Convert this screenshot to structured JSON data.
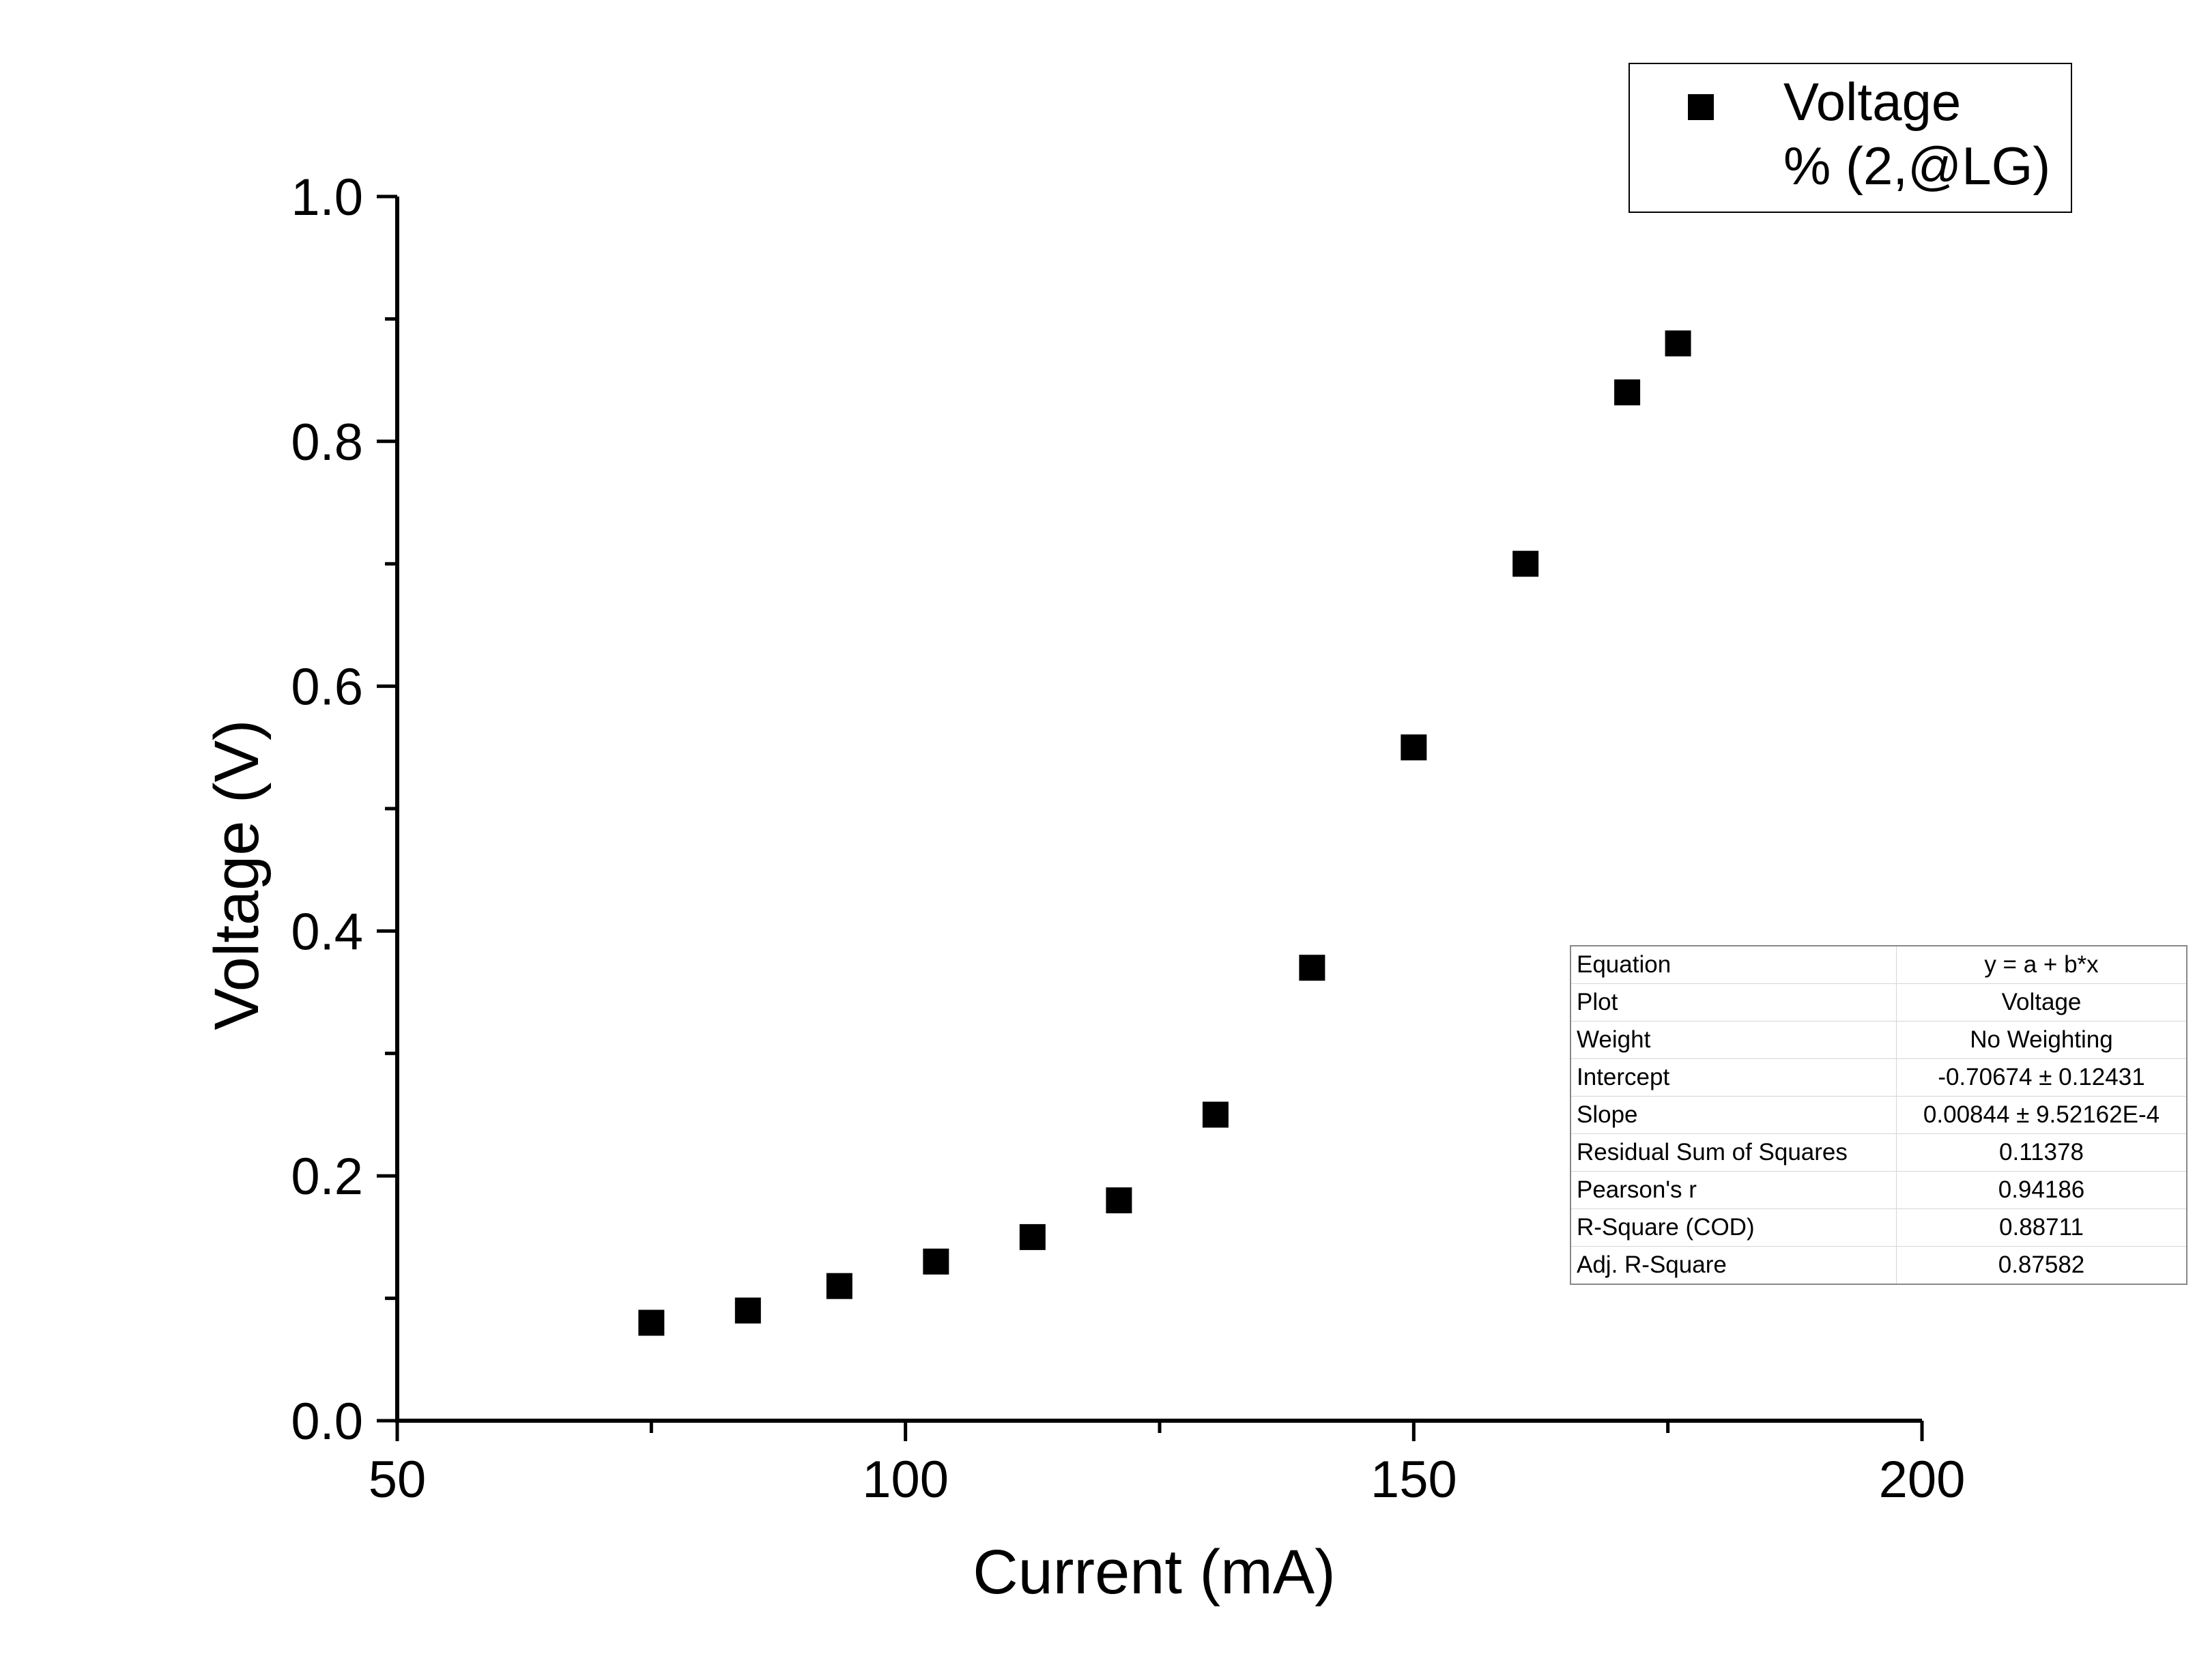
{
  "chart_data": {
    "type": "scatter",
    "xlabel": "Current (mA)",
    "ylabel": "Voltage (V)",
    "xlim": [
      50,
      200
    ],
    "ylim": [
      0.0,
      1.0
    ],
    "x_ticks": [
      "50",
      "100",
      "150",
      "200"
    ],
    "y_ticks": [
      "0.0",
      "0.2",
      "0.4",
      "0.6",
      "0.8",
      "1.0"
    ],
    "grid": false,
    "legend_position": "top-right",
    "series": [
      {
        "name": "Voltage",
        "marker": "square",
        "color": "#000000",
        "x": [
          75,
          84.5,
          93.5,
          103,
          112.5,
          121,
          130.5,
          140,
          150,
          161,
          171,
          176
        ],
        "y": [
          0.08,
          0.09,
          0.11,
          0.13,
          0.15,
          0.18,
          0.25,
          0.37,
          0.55,
          0.7,
          0.84,
          0.88
        ]
      }
    ],
    "legend": {
      "entries": [
        {
          "label_line1": "Voltage",
          "label_line2": "% (2,@LG)"
        }
      ]
    },
    "fit_table": [
      {
        "key": "Equation",
        "value": "y = a + b*x"
      },
      {
        "key": "Plot",
        "value": "Voltage"
      },
      {
        "key": "Weight",
        "value": "No Weighting"
      },
      {
        "key": "Intercept",
        "value": "-0.70674 ± 0.12431"
      },
      {
        "key": "Slope",
        "value": "0.00844 ± 9.52162E-4"
      },
      {
        "key": "Residual Sum of Squares",
        "value": "0.11378"
      },
      {
        "key": "Pearson's r",
        "value": "0.94186"
      },
      {
        "key": "R-Square (COD)",
        "value": "0.88711"
      },
      {
        "key": "Adj. R-Square",
        "value": "0.87582"
      }
    ]
  }
}
